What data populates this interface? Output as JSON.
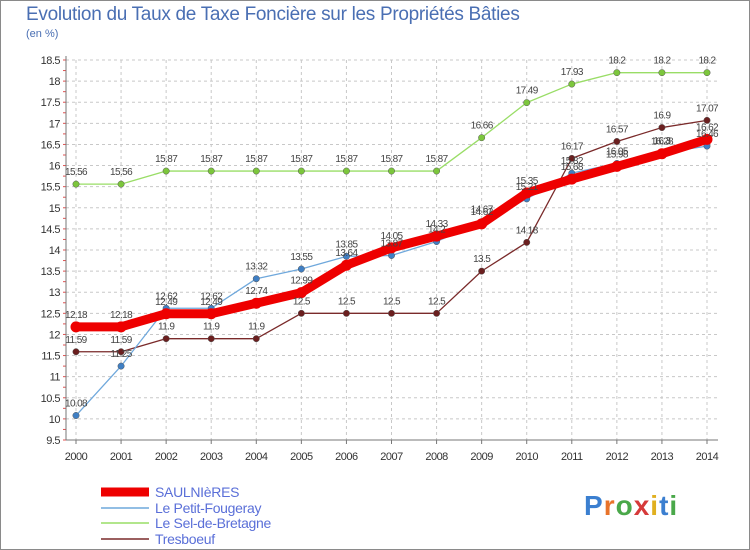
{
  "title": "Evolution du Taux de Taxe Foncière sur les Propriétés Bâties",
  "subtitle": "(en %)",
  "logo": {
    "text": "Proxiti",
    "letter_colors": [
      "#3b7fd0",
      "#e8732a",
      "#4aa84a",
      "#d63a3a",
      "#e0b020",
      "#3b7fd0",
      "#4aa84a"
    ]
  },
  "chart_data": {
    "type": "line",
    "title": "Evolution du Taux de Taxe Foncière sur les Propriétés Bâties",
    "ylabel": "(en %)",
    "xlabel": "",
    "x": [
      "2000",
      "2001",
      "2002",
      "2003",
      "2004",
      "2005",
      "2006",
      "2007",
      "2008",
      "2009",
      "2010",
      "2011",
      "2012",
      "2013",
      "2014"
    ],
    "ylim": [
      9.5,
      18.5
    ],
    "yticks": [
      "9.5",
      "10",
      "10.5",
      "11",
      "11.5",
      "12",
      "12.5",
      "13",
      "13.5",
      "14",
      "14.5",
      "15",
      "15.5",
      "16",
      "16.5",
      "17",
      "17.5",
      "18",
      "18.5"
    ],
    "grid": "dashed",
    "legend_position": "bottom-left",
    "series": [
      {
        "name": "SAULNIèRES",
        "color": "#ee0000",
        "width": 9,
        "values": [
          12.18,
          12.18,
          12.49,
          12.49,
          12.74,
          12.99,
          13.64,
          14.05,
          14.33,
          14.62,
          15.35,
          15.68,
          15.98,
          16.28,
          16.62
        ],
        "labels": [
          "12.18",
          "12.18",
          "12.49",
          "12.49",
          "12.74",
          "12.99",
          "13.64",
          "14.05",
          "14.33",
          "14.62",
          "15.35",
          "15.68",
          "15.98",
          "16.28",
          "16.62"
        ]
      },
      {
        "name": "Le Petit-Fougeray",
        "color": "#6fa8dc",
        "width": 1.3,
        "values": [
          10.08,
          11.25,
          12.62,
          12.62,
          13.32,
          13.55,
          13.85,
          13.87,
          14.2,
          14.67,
          15.21,
          15.82,
          16.05,
          16.3,
          16.46
        ],
        "labels": [
          "10.08",
          "11.25",
          "12.62",
          "12.62",
          "13.32",
          "13.55",
          "13.85",
          "13.87",
          "14.2",
          "14.67",
          "15.21",
          "15.82",
          "16.05",
          "16.3",
          "16.46"
        ]
      },
      {
        "name": "Le Sel-de-Bretagne",
        "color": "#99dd66",
        "width": 1.3,
        "values": [
          15.56,
          15.56,
          15.87,
          15.87,
          15.87,
          15.87,
          15.87,
          15.87,
          15.87,
          16.66,
          17.49,
          17.93,
          18.2,
          18.2,
          18.2
        ],
        "labels": [
          "15.56",
          "15.56",
          "15.87",
          "15.87",
          "15.87",
          "15.87",
          "15.87",
          "15.87",
          "15.87",
          "16.66",
          "17.49",
          "17.93",
          "18.2",
          "18.2",
          "18.2"
        ]
      },
      {
        "name": "Tresboeuf",
        "color": "#7a2a2a",
        "width": 1.3,
        "values": [
          11.59,
          11.59,
          11.9,
          11.9,
          11.9,
          12.5,
          12.5,
          12.5,
          12.5,
          13.5,
          14.18,
          16.17,
          16.57,
          16.9,
          17.07
        ],
        "labels": [
          "11.59",
          "11.59",
          "11.9",
          "11.9",
          "11.9",
          "12.5",
          "12.5",
          "12.5",
          "12.5",
          "13.5",
          "14.18",
          "16.17",
          "16.57",
          "16.9",
          "17.07"
        ]
      }
    ]
  }
}
